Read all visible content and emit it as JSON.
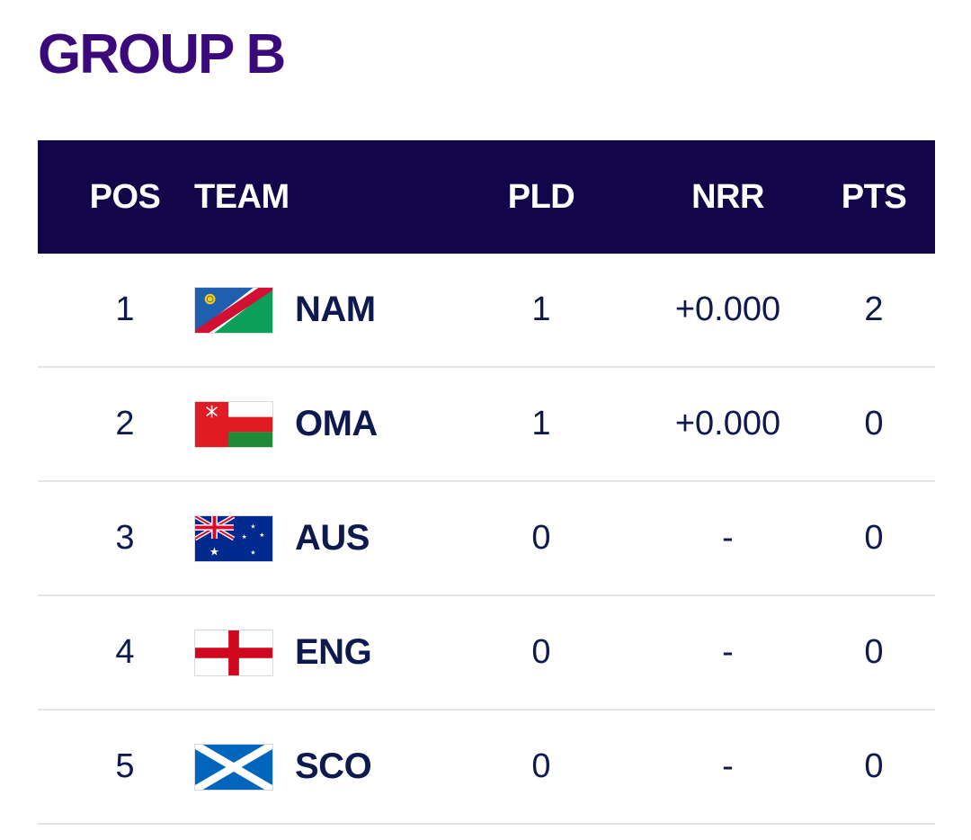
{
  "title": "GROUP B",
  "headers": {
    "pos": "POS",
    "team": "TEAM",
    "pld": "PLD",
    "nrr": "NRR",
    "pts": "PTS"
  },
  "colors": {
    "title": "#3b0a7a",
    "header_bg": "#12054a",
    "text": "#0e1a4f"
  },
  "rows": [
    {
      "pos": "1",
      "team": "NAM",
      "flag": "namibia-flag-icon",
      "pld": "1",
      "nrr": "+0.000",
      "pts": "2"
    },
    {
      "pos": "2",
      "team": "OMA",
      "flag": "oman-flag-icon",
      "pld": "1",
      "nrr": "+0.000",
      "pts": "0"
    },
    {
      "pos": "3",
      "team": "AUS",
      "flag": "australia-flag-icon",
      "pld": "0",
      "nrr": "-",
      "pts": "0"
    },
    {
      "pos": "4",
      "team": "ENG",
      "flag": "england-flag-icon",
      "pld": "0",
      "nrr": "-",
      "pts": "0"
    },
    {
      "pos": "5",
      "team": "SCO",
      "flag": "scotland-flag-icon",
      "pld": "0",
      "nrr": "-",
      "pts": "0"
    }
  ]
}
